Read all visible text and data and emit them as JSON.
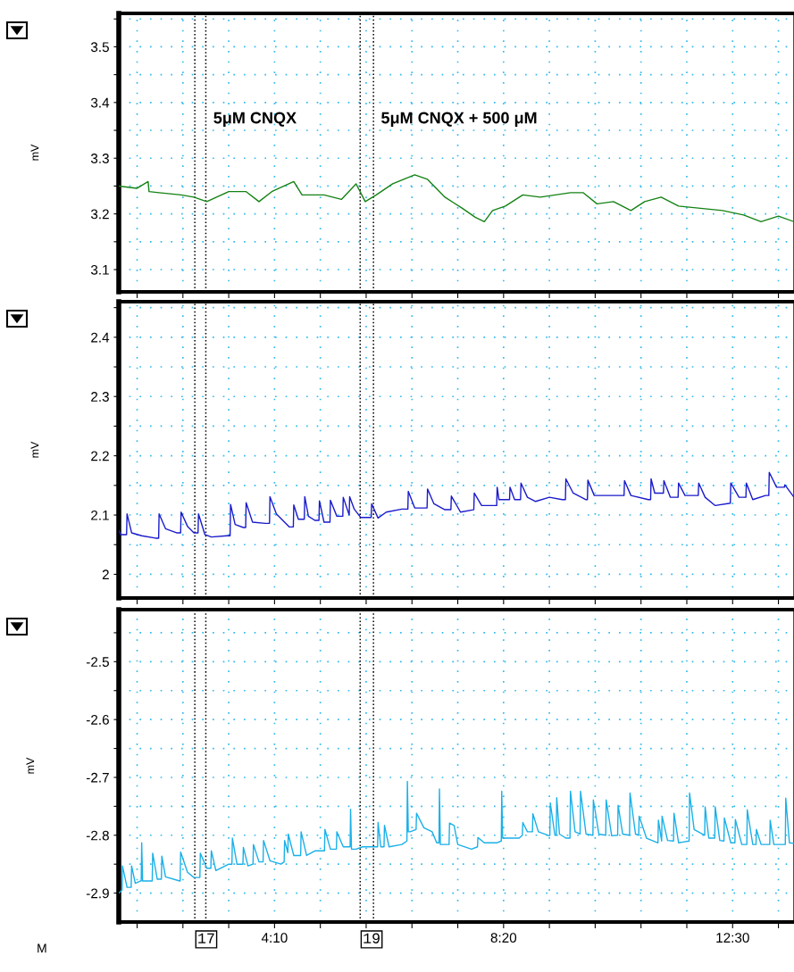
{
  "chart_data": [
    {
      "type": "line",
      "ylabel": "mV",
      "xlim": [
        80,
        817
      ],
      "ylim": [
        3.06,
        3.56
      ],
      "grid": true,
      "tick_labels": "y",
      "line_style": "solid",
      "xticks": [
        {
          "value": 100,
          "label": null
        },
        {
          "value": 150,
          "label": null
        },
        {
          "value": 200,
          "label": null
        },
        {
          "value": 250,
          "label": null
        },
        {
          "value": 300,
          "label": null
        },
        {
          "value": 350,
          "label": null
        },
        {
          "value": 400,
          "label": null
        },
        {
          "value": 450,
          "label": null
        },
        {
          "value": 500,
          "label": null
        },
        {
          "value": 550,
          "label": null
        },
        {
          "value": 600,
          "label": null
        },
        {
          "value": 650,
          "label": null
        },
        {
          "value": 700,
          "label": null
        },
        {
          "value": 750,
          "label": null
        },
        {
          "value": 800,
          "label": null
        }
      ],
      "yticks": [
        3.1,
        {
          "value": 3.15,
          "label": null
        },
        3.2,
        {
          "value": 3.25,
          "label": null
        },
        3.3,
        {
          "value": 3.35,
          "label": null
        },
        3.4,
        {
          "value": 3.45,
          "label": null
        },
        3.5,
        {
          "value": 3.55,
          "label": null
        }
      ],
      "annotations": [
        "5μM CNQX",
        "5μM CNQX + 500 μM"
      ],
      "ref_lines": [
        {
          "axis": "x",
          "value": 163,
          "line_style": "dotted",
          "color": "#000000"
        },
        {
          "axis": "x",
          "value": 175,
          "line_style": "dotted",
          "color": "#000000"
        },
        {
          "axis": "x",
          "value": 343.5,
          "line_style": "dotted",
          "color": "#000000"
        },
        {
          "axis": "x",
          "value": 358,
          "line_style": "dotted",
          "color": "#000000"
        }
      ],
      "series": [
        {
          "color": "#148214",
          "x": [
            80,
            100,
            112,
            113,
            124,
            148,
            162,
            176,
            200,
            219,
            233,
            247,
            271,
            280,
            304,
            323,
            339,
            349,
            361,
            379,
            403,
            417,
            436,
            455,
            469,
            479,
            488,
            502,
            521,
            540,
            573,
            587,
            602,
            620,
            639,
            654,
            672,
            691,
            715,
            739,
            762,
            781,
            800,
            817
          ],
          "values": [
            3.25,
            3.246,
            3.258,
            3.24,
            3.238,
            3.234,
            3.23,
            3.222,
            3.24,
            3.24,
            3.222,
            3.24,
            3.258,
            3.234,
            3.234,
            3.226,
            3.254,
            3.222,
            3.234,
            3.254,
            3.27,
            3.262,
            3.23,
            3.21,
            3.194,
            3.186,
            3.206,
            3.214,
            3.234,
            3.23,
            3.238,
            3.238,
            3.218,
            3.222,
            3.206,
            3.222,
            3.23,
            3.214,
            3.21,
            3.206,
            3.198,
            3.186,
            3.196,
            3.186
          ]
        }
      ]
    },
    {
      "type": "line",
      "ylabel": "mV",
      "xlim": [
        80,
        817
      ],
      "ylim": [
        1.96,
        2.46
      ],
      "grid": true,
      "tick_labels": "y",
      "line_style": "solid",
      "xticks": [
        {
          "value": 100,
          "label": null
        },
        {
          "value": 150,
          "label": null
        },
        {
          "value": 200,
          "label": null
        },
        {
          "value": 250,
          "label": null
        },
        {
          "value": 300,
          "label": null
        },
        {
          "value": 350,
          "label": null
        },
        {
          "value": 400,
          "label": null
        },
        {
          "value": 450,
          "label": null
        },
        {
          "value": 500,
          "label": null
        },
        {
          "value": 550,
          "label": null
        },
        {
          "value": 600,
          "label": null
        },
        {
          "value": 650,
          "label": null
        },
        {
          "value": 700,
          "label": null
        },
        {
          "value": 750,
          "label": null
        },
        {
          "value": 800,
          "label": null
        }
      ],
      "yticks": [
        2,
        {
          "value": 2.05,
          "label": null
        },
        2.1,
        {
          "value": 2.15,
          "label": null
        },
        2.2,
        {
          "value": 2.25,
          "label": null
        },
        2.3,
        {
          "value": 2.35,
          "label": null
        },
        2.4,
        {
          "value": 2.45,
          "label": null
        }
      ],
      "ref_lines": [
        {
          "axis": "x",
          "value": 163,
          "line_style": "dotted",
          "color": "#000000"
        },
        {
          "axis": "x",
          "value": 175,
          "line_style": "dotted",
          "color": "#000000"
        },
        {
          "axis": "x",
          "value": 343.5,
          "line_style": "dotted",
          "color": "#000000"
        },
        {
          "axis": "x",
          "value": 358,
          "line_style": "dotted",
          "color": "#000000"
        }
      ],
      "series": [
        {
          "color": "#1a1acc",
          "x": [
            80,
            82,
            88.5,
            89,
            94,
            105,
            120,
            123.5,
            124,
            131,
            143,
            147.5,
            148,
            155,
            162,
            166.5,
            167,
            174,
            181,
            198,
            201.5,
            202,
            207,
            216,
            218.5,
            219,
            226,
            240,
            244.5,
            245,
            252,
            266,
            270.5,
            271,
            276,
            282.5,
            283,
            287,
            294,
            298.5,
            299,
            304,
            310.5,
            311,
            318,
            324.5,
            325,
            331.5,
            332,
            337,
            344,
            354,
            355.5,
            356,
            363,
            372,
            389,
            395.5,
            396,
            403,
            416.5,
            417,
            424,
            436,
            442.5,
            443,
            453,
            467,
            467.5,
            468,
            476,
            492.5,
            493,
            495,
            506.5,
            507,
            512,
            518.5,
            519,
            526,
            535,
            550,
            564,
            567.5,
            568,
            576,
            590,
            591.5,
            592,
            599,
            620,
            631.5,
            632,
            639,
            658,
            660.5,
            661,
            665,
            674.5,
            675,
            682,
            690.5,
            691,
            698,
            712.5,
            713,
            720,
            731,
            747.5,
            748,
            757,
            764.5,
            765,
            772,
            786,
            789.5,
            790,
            798,
            806.5,
            807,
            817
          ],
          "values": [
            2.074,
            2.067,
            2.067,
            2.102,
            2.07,
            2.065,
            2.061,
            2.061,
            2.102,
            2.077,
            2.07,
            2.07,
            2.105,
            2.081,
            2.07,
            2.07,
            2.102,
            2.067,
            2.063,
            2.065,
            2.065,
            2.118,
            2.084,
            2.079,
            2.079,
            2.121,
            2.088,
            2.086,
            2.086,
            2.131,
            2.102,
            2.08,
            2.08,
            2.117,
            2.093,
            2.093,
            2.131,
            2.098,
            2.091,
            2.091,
            2.124,
            2.088,
            2.088,
            2.125,
            2.098,
            2.098,
            2.13,
            2.1,
            2.131,
            2.11,
            2.096,
            2.096,
            2.096,
            2.119,
            2.095,
            2.105,
            2.11,
            2.11,
            2.14,
            2.112,
            2.112,
            2.144,
            2.119,
            2.109,
            2.109,
            2.132,
            2.105,
            2.109,
            2.109,
            2.137,
            2.116,
            2.116,
            2.147,
            2.126,
            2.126,
            2.147,
            2.126,
            2.126,
            2.154,
            2.13,
            2.123,
            2.13,
            2.126,
            2.126,
            2.161,
            2.137,
            2.126,
            2.126,
            2.159,
            2.133,
            2.133,
            2.133,
            2.158,
            2.133,
            2.126,
            2.126,
            2.161,
            2.137,
            2.137,
            2.158,
            2.13,
            2.13,
            2.154,
            2.133,
            2.133,
            2.154,
            2.13,
            2.116,
            2.12,
            2.154,
            2.13,
            2.13,
            2.154,
            2.126,
            2.133,
            2.133,
            2.172,
            2.147,
            2.147,
            2.151,
            2.13
          ]
        }
      ]
    },
    {
      "type": "line",
      "ylabel": "mV",
      "xlim": [
        80,
        817
      ],
      "ylim": [
        -2.95,
        -2.41
      ],
      "grid": true,
      "line_style": "solid",
      "xticks": [
        {
          "value": 100,
          "label": null
        },
        {
          "value": 150,
          "label": null
        },
        {
          "value": 200,
          "label": null
        },
        {
          "value": 250,
          "label": "4:10"
        },
        {
          "value": 300,
          "label": null
        },
        {
          "value": 350,
          "label": null
        },
        {
          "value": 400,
          "label": null
        },
        {
          "value": 450,
          "label": null
        },
        {
          "value": 500,
          "label": "8:20"
        },
        {
          "value": 550,
          "label": null
        },
        {
          "value": 600,
          "label": null
        },
        {
          "value": 650,
          "label": null
        },
        {
          "value": 700,
          "label": null
        },
        {
          "value": 750,
          "label": "12:30"
        },
        {
          "value": 800,
          "label": null
        }
      ],
      "yticks": [
        -2.9,
        {
          "value": -2.85,
          "label": null
        },
        -2.8,
        {
          "value": -2.75,
          "label": null
        },
        -2.7,
        {
          "value": -2.65,
          "label": null
        },
        -2.6,
        {
          "value": -2.55,
          "label": null
        },
        -2.5,
        {
          "value": -2.45,
          "label": null
        }
      ],
      "annotations": [
        "17",
        "19",
        "M"
      ],
      "ref_lines": [
        {
          "axis": "x",
          "value": 163,
          "line_style": "dotted",
          "color": "#000000"
        },
        {
          "axis": "x",
          "value": 175,
          "line_style": "dotted",
          "color": "#000000"
        },
        {
          "axis": "x",
          "value": 343.5,
          "line_style": "dotted",
          "color": "#000000"
        },
        {
          "axis": "x",
          "value": 358,
          "line_style": "dotted",
          "color": "#000000"
        }
      ],
      "series": [
        {
          "color": "#1ab0e8",
          "x": [
            80,
            83.5,
            84,
            89,
            93.5,
            94,
            98,
            104,
            104.5,
            105,
            106,
            112,
            116.5,
            117,
            122,
            126.5,
            127,
            131,
            146.5,
            147,
            147.5,
            155,
            162,
            168.5,
            169,
            176,
            180.5,
            181,
            186,
            200,
            203.5,
            204,
            209,
            215.5,
            216,
            221,
            226.5,
            227,
            233,
            237.5,
            238,
            245,
            257,
            260.5,
            261,
            264.5,
            265,
            271,
            278.5,
            279,
            285,
            294,
            304.5,
            305,
            311,
            317.5,
            318,
            325,
            332.5,
            333,
            334,
            339,
            346,
            362.5,
            363,
            366,
            369.5,
            370,
            375,
            389,
            394.5,
            395,
            396,
            398,
            404.5,
            405,
            413,
            422,
            427,
            429.5,
            430,
            431,
            436,
            440.5,
            441,
            446,
            450,
            465,
            471.5,
            472,
            479,
            493,
            497.5,
            498,
            499,
            502,
            517,
            520.5,
            521,
            526,
            531.5,
            532,
            538,
            550,
            550.5,
            551,
            556,
            557.5,
            558,
            561,
            568,
            572.5,
            573,
            578,
            583.5,
            584,
            590,
            597.5,
            598,
            604,
            611.5,
            612,
            618,
            624.5,
            625,
            630,
            637.5,
            638,
            644,
            647.5,
            648,
            656,
            668,
            668.5,
            669,
            672.5,
            673,
            679,
            685.5,
            686,
            691,
            702.5,
            703,
            708,
            719.5,
            720,
            724,
            730.5,
            731,
            736,
            740.5,
            741,
            748,
            752.5,
            753,
            760,
            765.5,
            766,
            772,
            775.5,
            776,
            781,
            790.5,
            791,
            795,
            807.5,
            808,
            812,
            817
          ],
          "values": [
            -2.9,
            -2.895,
            -2.853,
            -2.89,
            -2.89,
            -2.853,
            -2.883,
            -2.879,
            -2.879,
            -2.813,
            -2.879,
            -2.879,
            -2.879,
            -2.831,
            -2.876,
            -2.876,
            -2.836,
            -2.872,
            -2.879,
            -2.879,
            -2.829,
            -2.864,
            -2.873,
            -2.873,
            -2.831,
            -2.857,
            -2.857,
            -2.827,
            -2.861,
            -2.85,
            -2.85,
            -2.805,
            -2.85,
            -2.85,
            -2.821,
            -2.853,
            -2.85,
            -2.816,
            -2.846,
            -2.846,
            -2.809,
            -2.844,
            -2.85,
            -2.846,
            -2.809,
            -2.83,
            -2.798,
            -2.835,
            -2.835,
            -2.794,
            -2.835,
            -2.827,
            -2.827,
            -2.79,
            -2.824,
            -2.824,
            -2.794,
            -2.82,
            -2.82,
            -2.755,
            -2.824,
            -2.824,
            -2.82,
            -2.82,
            -2.778,
            -2.82,
            -2.82,
            -2.783,
            -2.82,
            -2.816,
            -2.81,
            -2.707,
            -2.794,
            -2.794,
            -2.79,
            -2.762,
            -2.787,
            -2.794,
            -2.813,
            -2.813,
            -2.72,
            -2.816,
            -2.816,
            -2.816,
            -2.779,
            -2.783,
            -2.816,
            -2.824,
            -2.82,
            -2.804,
            -2.813,
            -2.813,
            -2.81,
            -2.724,
            -2.805,
            -2.805,
            -2.805,
            -2.8,
            -2.778,
            -2.794,
            -2.794,
            -2.763,
            -2.794,
            -2.801,
            -2.8,
            -2.744,
            -2.8,
            -2.8,
            -2.735,
            -2.798,
            -2.805,
            -2.805,
            -2.724,
            -2.794,
            -2.798,
            -2.724,
            -2.798,
            -2.8,
            -2.739,
            -2.798,
            -2.8,
            -2.739,
            -2.801,
            -2.8,
            -2.748,
            -2.798,
            -2.8,
            -2.727,
            -2.798,
            -2.8,
            -2.767,
            -2.805,
            -2.813,
            -2.813,
            -2.774,
            -2.81,
            -2.767,
            -2.809,
            -2.81,
            -2.762,
            -2.813,
            -2.81,
            -2.727,
            -2.79,
            -2.8,
            -2.751,
            -2.805,
            -2.805,
            -2.751,
            -2.809,
            -2.81,
            -2.77,
            -2.813,
            -2.813,
            -2.773,
            -2.816,
            -2.816,
            -2.756,
            -2.816,
            -2.816,
            -2.79,
            -2.816,
            -2.816,
            -2.774,
            -2.816,
            -2.816,
            -2.736,
            -2.813,
            -2.814
          ]
        }
      ]
    }
  ]
}
